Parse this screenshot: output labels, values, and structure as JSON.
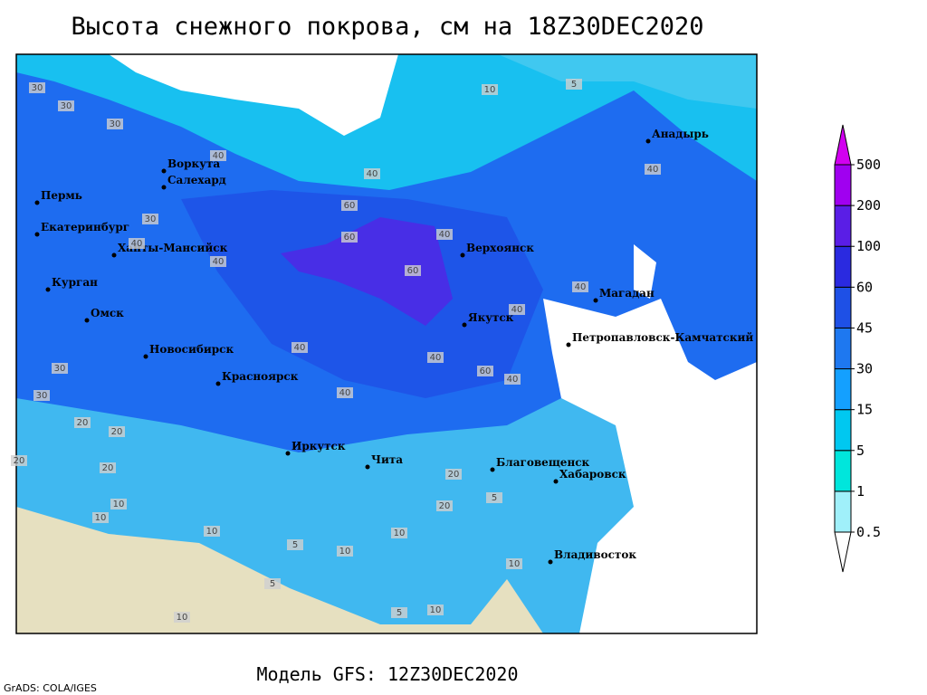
{
  "title": "Высота снежного покрова, см на 18Z30DEC2020",
  "footer": "Модель GFS: 12Z30DEC2020",
  "credit": "GrADS: COLA/IGES",
  "cities": [
    "Воркута",
    "Салехард",
    "Пермь",
    "Екатеринбург",
    "Ханты-Мансийск",
    "Курган",
    "Омск",
    "Новосибирск",
    "Красноярск",
    "Иркутск",
    "Чита",
    "Верхоянск",
    "Якутск",
    "Магадан",
    "Петропавловск-Камчатский",
    "Анадырь",
    "Благовещенск",
    "Хабаровск",
    "Владивосток"
  ],
  "contour_labels": [
    30,
    30,
    30,
    40,
    40,
    30,
    40,
    40,
    60,
    60,
    60,
    40,
    40,
    40,
    40,
    40,
    60,
    40,
    30,
    30,
    20,
    20,
    20,
    20,
    10,
    10,
    10,
    10,
    5,
    5,
    10,
    20,
    20,
    5,
    10,
    5,
    10,
    10,
    40,
    40,
    5,
    10
  ],
  "legend": {
    "levels": [
      0.5,
      1,
      5,
      15,
      30,
      45,
      60,
      100,
      200,
      500
    ],
    "colors": [
      "#ffffff",
      "#a0f0fa",
      "#00e6dc",
      "#00c8f0",
      "#14a0ff",
      "#1e78f0",
      "#1e50e6",
      "#2a2ae0",
      "#5a1ee6",
      "#a000f0",
      "#d200f0"
    ]
  }
}
